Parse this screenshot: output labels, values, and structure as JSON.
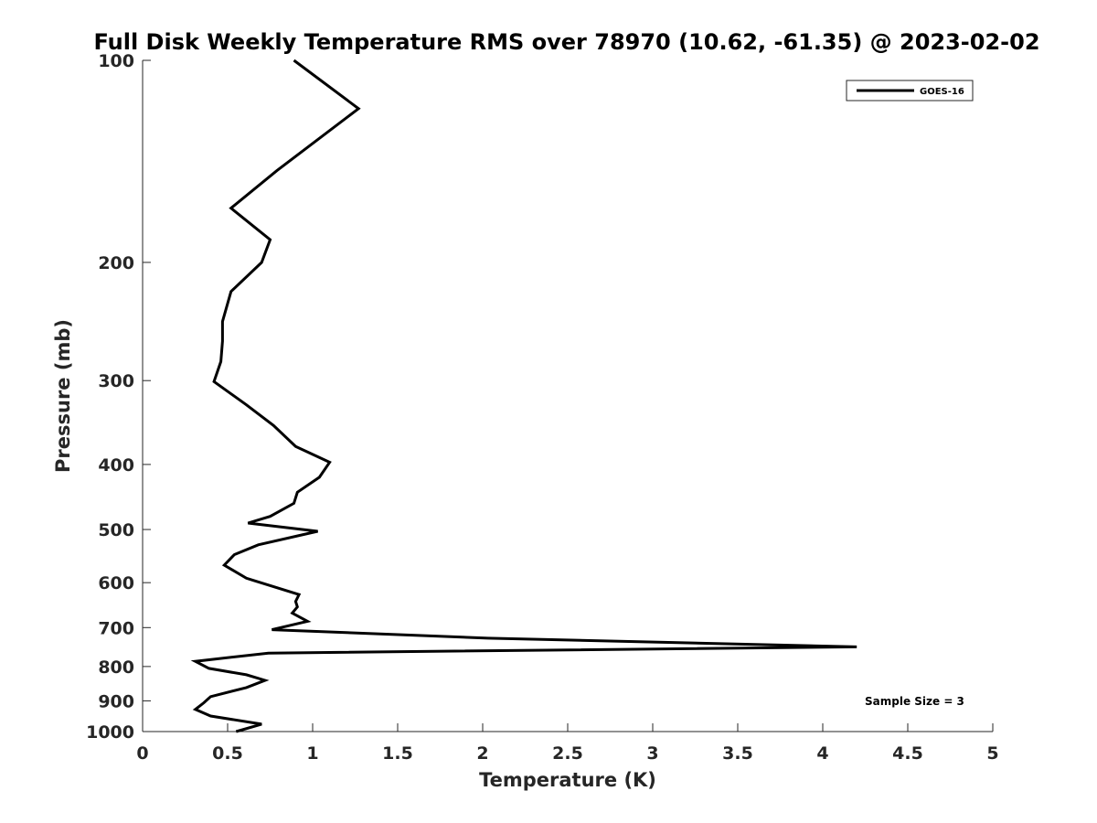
{
  "chart_data": {
    "type": "line",
    "title": "Full Disk Weekly Temperature RMS over 78970 (10.62, -61.35) @ 2023-02-02",
    "xlabel": "Temperature (K)",
    "ylabel": "Pressure (mb)",
    "xlim": [
      0,
      5
    ],
    "ylim": [
      100,
      1000
    ],
    "y_scale": "log",
    "y_direction": "reversed",
    "x_ticks": [
      0,
      0.5,
      1,
      1.5,
      2,
      2.5,
      3,
      3.5,
      4,
      4.5,
      5
    ],
    "x_tick_labels": [
      "0",
      "0.5",
      "1",
      "1.5",
      "2",
      "2.5",
      "3",
      "3.5",
      "4",
      "4.5",
      "5"
    ],
    "y_ticks": [
      100,
      200,
      300,
      400,
      500,
      600,
      700,
      800,
      900,
      1000
    ],
    "y_tick_labels": [
      "100",
      "200",
      "300",
      "400",
      "500",
      "600",
      "700",
      "800",
      "900",
      "1000"
    ],
    "grid": false,
    "legend_position": "top-right",
    "annotation": "Sample Size = 3",
    "series": [
      {
        "name": "GOES-16",
        "color": "#000000",
        "x": [
          0.89,
          1.27,
          0.79,
          0.52,
          0.75,
          0.7,
          0.52,
          0.47,
          0.47,
          0.46,
          0.42,
          0.61,
          0.77,
          0.9,
          1.1,
          1.04,
          0.91,
          0.89,
          0.75,
          0.62,
          1.03,
          0.68,
          0.54,
          0.48,
          0.61,
          0.92,
          0.9,
          0.91,
          0.88,
          0.97,
          0.76,
          2.03,
          4.2,
          0.74,
          0.31,
          0.39,
          0.61,
          0.72,
          0.61,
          0.4,
          0.36,
          0.31,
          0.4,
          0.7,
          0.55
        ],
        "y": [
          100,
          118,
          146,
          166,
          185,
          200,
          221,
          245,
          262,
          281,
          301,
          326,
          350,
          376,
          397,
          418,
          440,
          457,
          478,
          489,
          503,
          527,
          545,
          565,
          591,
          625,
          640,
          652,
          666,
          685,
          705,
          726,
          748,
          764,
          786,
          805,
          823,
          839,
          860,
          887,
          906,
          927,
          948,
          975,
          1000
        ]
      }
    ]
  }
}
